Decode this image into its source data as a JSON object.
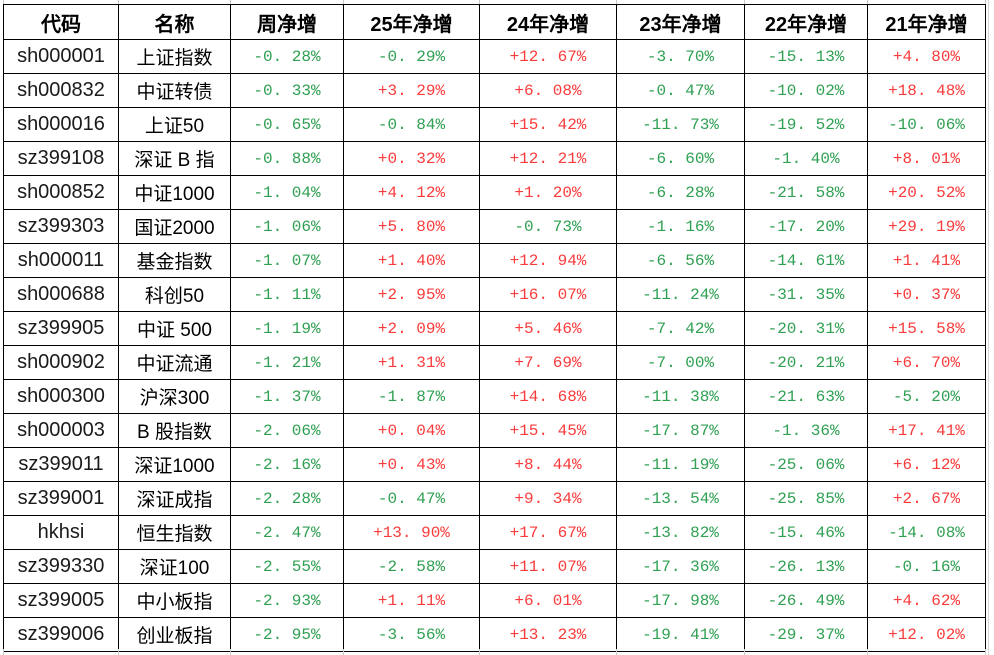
{
  "colors": {
    "positive": "#fa3b3b",
    "negative": "#2fa052",
    "border": "#000000",
    "outer_gridline": "#c9c9c9",
    "header_text": "#000000"
  },
  "table": {
    "columns": [
      "代码",
      "名称",
      "周净增",
      "25年净增",
      "24年净增",
      "23年净增",
      "22年净增",
      "21年净增"
    ],
    "rows": [
      {
        "code": "sh000001",
        "name": "上证指数",
        "values": [
          "-0. 28%",
          "-0. 29%",
          "+12. 67%",
          "-3. 70%",
          "-15. 13%",
          "+4. 80%"
        ]
      },
      {
        "code": "sh000832",
        "name": "中证转债",
        "values": [
          "-0. 33%",
          "+3. 29%",
          "+6. 08%",
          "-0. 47%",
          "-10. 02%",
          "+18. 48%"
        ]
      },
      {
        "code": "sh000016",
        "name": "上证50",
        "values": [
          "-0. 65%",
          "-0. 84%",
          "+15. 42%",
          "-11. 73%",
          "-19. 52%",
          "-10. 06%"
        ]
      },
      {
        "code": "sz399108",
        "name": "深证 B 指",
        "values": [
          "-0. 88%",
          "+0. 32%",
          "+12. 21%",
          "-6. 60%",
          "-1. 40%",
          "+8. 01%"
        ]
      },
      {
        "code": "sh000852",
        "name": "中证1000",
        "values": [
          "-1. 04%",
          "+4. 12%",
          "+1. 20%",
          "-6. 28%",
          "-21. 58%",
          "+20. 52%"
        ]
      },
      {
        "code": "sz399303",
        "name": "国证2000",
        "values": [
          "-1. 06%",
          "+5. 80%",
          "-0. 73%",
          "-1. 16%",
          "-17. 20%",
          "+29. 19%"
        ]
      },
      {
        "code": "sh000011",
        "name": "基金指数",
        "values": [
          "-1. 07%",
          "+1. 40%",
          "+12. 94%",
          "-6. 56%",
          "-14. 61%",
          "+1. 41%"
        ]
      },
      {
        "code": "sh000688",
        "name": "科创50",
        "values": [
          "-1. 11%",
          "+2. 95%",
          "+16. 07%",
          "-11. 24%",
          "-31. 35%",
          "+0. 37%"
        ]
      },
      {
        "code": "sz399905",
        "name": "中证 500",
        "values": [
          "-1. 19%",
          "+2. 09%",
          "+5. 46%",
          "-7. 42%",
          "-20. 31%",
          "+15. 58%"
        ]
      },
      {
        "code": "sh000902",
        "name": "中证流通",
        "values": [
          "-1. 21%",
          "+1. 31%",
          "+7. 69%",
          "-7. 00%",
          "-20. 21%",
          "+6. 70%"
        ]
      },
      {
        "code": "sh000300",
        "name": "沪深300",
        "values": [
          "-1. 37%",
          "-1. 87%",
          "+14. 68%",
          "-11. 38%",
          "-21. 63%",
          "-5. 20%"
        ]
      },
      {
        "code": "sh000003",
        "name": "B 股指数",
        "values": [
          "-2. 06%",
          "+0. 04%",
          "+15. 45%",
          "-17. 87%",
          "-1. 36%",
          "+17. 41%"
        ]
      },
      {
        "code": "sz399011",
        "name": "深证1000",
        "values": [
          "-2. 16%",
          "+0. 43%",
          "+8. 44%",
          "-11. 19%",
          "-25. 06%",
          "+6. 12%"
        ]
      },
      {
        "code": "sz399001",
        "name": "深证成指",
        "values": [
          "-2. 28%",
          "-0. 47%",
          "+9. 34%",
          "-13. 54%",
          "-25. 85%",
          "+2. 67%"
        ]
      },
      {
        "code": "hkhsi",
        "name": "恒生指数",
        "values": [
          "-2. 47%",
          "+13. 90%",
          "+17. 67%",
          "-13. 82%",
          "-15. 46%",
          "-14. 08%"
        ]
      },
      {
        "code": "sz399330",
        "name": "深证100",
        "values": [
          "-2. 55%",
          "-2. 58%",
          "+11. 07%",
          "-17. 36%",
          "-26. 13%",
          "-0. 16%"
        ]
      },
      {
        "code": "sz399005",
        "name": "中小板指",
        "values": [
          "-2. 93%",
          "+1. 11%",
          "+6. 01%",
          "-17. 98%",
          "-26. 49%",
          "+4. 62%"
        ]
      },
      {
        "code": "sz399006",
        "name": "创业板指",
        "values": [
          "-2. 95%",
          "-3. 56%",
          "+13. 23%",
          "-19. 41%",
          "-29. 37%",
          "+12. 02%"
        ]
      }
    ]
  }
}
